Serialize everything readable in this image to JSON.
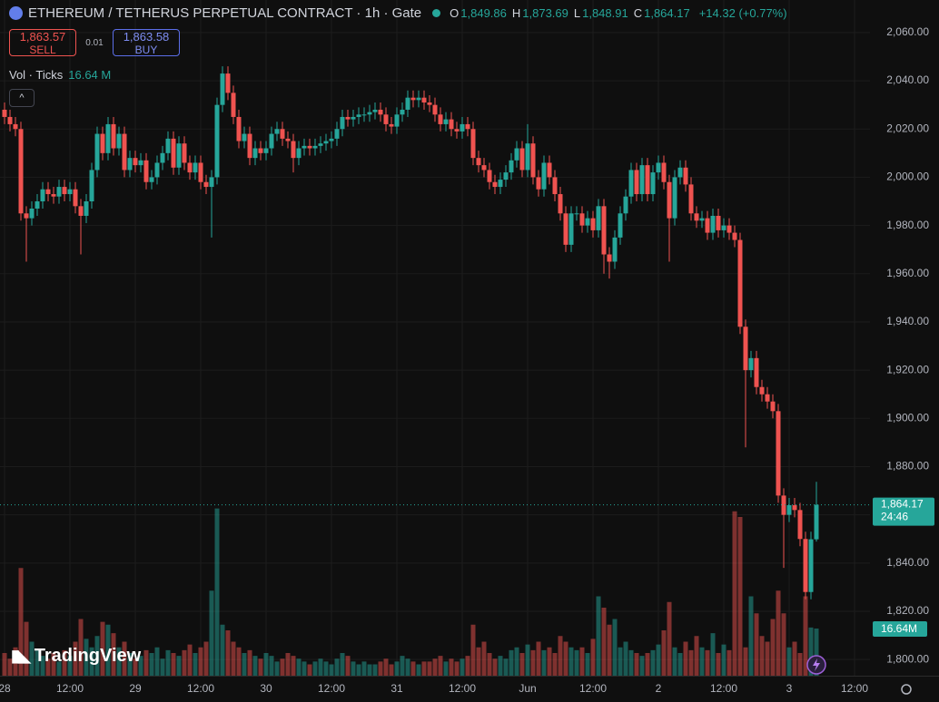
{
  "header": {
    "symbol": "ETHEREUM / TETHERUS PERPETUAL CONTRACT · 1h · Gate",
    "ohlc": [
      {
        "key": "O",
        "value": "1,849.86"
      },
      {
        "key": "H",
        "value": "1,873.69"
      },
      {
        "key": "L",
        "value": "1,848.91"
      },
      {
        "key": "C",
        "value": "1,864.17"
      }
    ],
    "change": "+14.32 (+0.77%)"
  },
  "trade": {
    "sell_price": "1,863.57",
    "sell": "SELL",
    "spread": "0.01",
    "buy_price": "1,863.58",
    "buy": "BUY"
  },
  "volume_legend": {
    "label": "Vol · Ticks",
    "value": "16.64 M"
  },
  "branding": "TradingView",
  "chart_data": {
    "type": "candlestick",
    "open": [
      2028,
      2025,
      2022,
      2020,
      1985,
      1983,
      1987,
      1990,
      1995,
      1993,
      1992,
      1996,
      1993,
      1995,
      1988,
      1984,
      1990,
      2003,
      2018,
      2010,
      2022,
      2012,
      2018,
      2003,
      2008,
      2005,
      2007,
      1998,
      2000,
      2006,
      2010,
      2016,
      2004,
      2014,
      2006,
      2002,
      2006,
      1998,
      1996,
      2000,
      2030,
      2043,
      2035,
      2025,
      2015,
      2018,
      2008,
      2012,
      2010,
      2012,
      2018,
      2020,
      2016,
      2015,
      2008,
      2012,
      2013,
      2012,
      2013,
      2014,
      2015,
      2016,
      2020,
      2025,
      2024,
      2025,
      2026,
      2026,
      2027,
      2028,
      2026,
      2022,
      2021,
      2026,
      2028,
      2033,
      2032,
      2033,
      2031,
      2030,
      2026,
      2022,
      2024,
      2020,
      2019,
      2022,
      2020,
      2008,
      2005,
      2003,
      1998,
      1996,
      1999,
      2002,
      2007,
      2012,
      2003,
      2014,
      2000,
      1995,
      2006,
      2000,
      1993,
      1985,
      1972,
      1985,
      1985,
      1980,
      1983,
      1978,
      1988,
      1968,
      1965,
      1975,
      1985,
      1992,
      2003,
      1993,
      2005,
      1993,
      2002,
      2006,
      1998,
      1983,
      2000,
      2004,
      1997,
      1985,
      1982,
      1983,
      1977,
      1984,
      1978,
      1980,
      1977,
      1974,
      1938,
      1920,
      1925,
      1913,
      1910,
      1907,
      1903,
      1868,
      1860,
      1864,
      1862,
      1850,
      1828,
      1849.86
    ],
    "high": [
      2031,
      2028,
      2025,
      2023,
      1988,
      1990,
      1993,
      1998,
      1998,
      1996,
      1999,
      1999,
      1998,
      1998,
      1991,
      1993,
      2006,
      2021,
      2021,
      2025,
      2025,
      2021,
      2021,
      2011,
      2011,
      2010,
      2010,
      2003,
      2009,
      2013,
      2019,
      2019,
      2017,
      2017,
      2009,
      2009,
      2009,
      2001,
      2003,
      2033,
      2046,
      2046,
      2038,
      2028,
      2021,
      2021,
      2015,
      2015,
      2015,
      2021,
      2023,
      2023,
      2019,
      2018,
      2015,
      2016,
      2016,
      2016,
      2017,
      2018,
      2019,
      2023,
      2028,
      2028,
      2028,
      2029,
      2029,
      2030,
      2031,
      2031,
      2029,
      2025,
      2029,
      2031,
      2036,
      2036,
      2036,
      2036,
      2034,
      2033,
      2029,
      2027,
      2027,
      2023,
      2025,
      2025,
      2023,
      2011,
      2008,
      2006,
      2001,
      2002,
      2005,
      2010,
      2015,
      2015,
      2022,
      2017,
      2003,
      2009,
      2009,
      2003,
      1996,
      1988,
      1988,
      1988,
      1988,
      1986,
      1986,
      1991,
      1991,
      1971,
      1978,
      1988,
      1995,
      2006,
      2006,
      2008,
      2008,
      2005,
      2009,
      2009,
      2001,
      2003,
      2007,
      2007,
      2000,
      1988,
      1986,
      1986,
      1987,
      1987,
      1983,
      1983,
      1980,
      1977,
      1941,
      1928,
      1928,
      1916,
      1913,
      1910,
      1906,
      1871,
      1867,
      1867,
      1865,
      1853,
      1853,
      1873.69
    ],
    "low": [
      2022,
      2019,
      2017,
      1982,
      1965,
      1980,
      1984,
      1987,
      1990,
      1989,
      1989,
      1990,
      1990,
      1985,
      1968,
      1981,
      1987,
      2000,
      2007,
      2007,
      2009,
      2009,
      2000,
      2000,
      2002,
      2002,
      1995,
      1995,
      1997,
      2003,
      2007,
      2001,
      2001,
      2003,
      1999,
      1999,
      1995,
      1993,
      1975,
      1997,
      2027,
      2032,
      2022,
      2012,
      2012,
      2005,
      2005,
      2007,
      2007,
      2009,
      2015,
      2013,
      2012,
      2002,
      2005,
      2009,
      2009,
      2009,
      2010,
      2011,
      2012,
      2013,
      2017,
      2021,
      2021,
      2022,
      2023,
      2023,
      2024,
      2023,
      2019,
      2018,
      2018,
      2023,
      2025,
      2029,
      2029,
      2028,
      2027,
      2023,
      2019,
      2019,
      2017,
      2016,
      2016,
      2017,
      2005,
      2002,
      2000,
      1995,
      1993,
      1993,
      1996,
      1999,
      2004,
      2000,
      2000,
      1997,
      1992,
      1992,
      1997,
      1990,
      1982,
      1969,
      1969,
      1982,
      1977,
      1977,
      1975,
      1975,
      1960,
      1958,
      1962,
      1972,
      1982,
      1989,
      1990,
      1990,
      1990,
      1990,
      1999,
      1995,
      1965,
      1980,
      1997,
      1994,
      1982,
      1979,
      1979,
      1974,
      1974,
      1975,
      1975,
      1974,
      1971,
      1935,
      1888,
      1917,
      1910,
      1907,
      1904,
      1900,
      1865,
      1838,
      1857,
      1859,
      1847,
      1825,
      1825,
      1848.91
    ],
    "close": [
      2025,
      2022,
      2020,
      1985,
      1983,
      1987,
      1990,
      1995,
      1993,
      1992,
      1996,
      1993,
      1995,
      1988,
      1984,
      1990,
      2003,
      2018,
      2010,
      2022,
      2012,
      2018,
      2003,
      2008,
      2005,
      2007,
      1998,
      2000,
      2006,
      2010,
      2016,
      2004,
      2014,
      2006,
      2002,
      2006,
      1998,
      1996,
      2000,
      2030,
      2043,
      2035,
      2025,
      2015,
      2018,
      2008,
      2012,
      2010,
      2012,
      2018,
      2020,
      2016,
      2015,
      2008,
      2012,
      2013,
      2012,
      2013,
      2014,
      2015,
      2016,
      2020,
      2025,
      2024,
      2025,
      2026,
      2026,
      2027,
      2028,
      2026,
      2022,
      2021,
      2026,
      2028,
      2033,
      2032,
      2033,
      2031,
      2030,
      2026,
      2022,
      2024,
      2020,
      2019,
      2022,
      2020,
      2008,
      2005,
      2003,
      1998,
      1996,
      1999,
      2002,
      2007,
      2012,
      2003,
      2014,
      2000,
      1995,
      2006,
      2000,
      1993,
      1985,
      1972,
      1985,
      1985,
      1980,
      1983,
      1978,
      1988,
      1968,
      1965,
      1975,
      1985,
      1992,
      2003,
      1993,
      2005,
      1993,
      2002,
      2006,
      1998,
      1983,
      2000,
      2004,
      1997,
      1985,
      1982,
      1983,
      1977,
      1984,
      1978,
      1980,
      1977,
      1974,
      1938,
      1920,
      1925,
      1913,
      1910,
      1907,
      1903,
      1868,
      1860,
      1864,
      1862,
      1850,
      1828,
      1849.86,
      1864.17
    ],
    "volume": [
      8,
      6,
      10,
      38,
      19,
      12,
      9,
      7,
      6,
      8,
      5,
      9,
      7,
      12,
      20,
      13,
      10,
      14,
      19,
      18,
      15,
      10,
      12,
      8,
      6,
      7,
      9,
      8,
      10,
      6,
      9,
      8,
      7,
      9,
      11,
      8,
      10,
      12,
      30,
      59,
      18,
      16,
      12,
      10,
      8,
      9,
      7,
      6,
      8,
      7,
      5,
      6,
      8,
      7,
      6,
      5,
      4,
      5,
      6,
      5,
      4,
      6,
      8,
      7,
      5,
      4,
      5,
      4,
      4,
      5,
      6,
      4,
      5,
      7,
      6,
      5,
      4,
      5,
      5,
      6,
      7,
      5,
      6,
      5,
      6,
      7,
      18,
      10,
      12,
      8,
      6,
      7,
      6,
      9,
      10,
      8,
      11,
      9,
      12,
      9,
      10,
      8,
      14,
      12,
      10,
      9,
      10,
      8,
      13,
      28,
      24,
      18,
      20,
      10,
      12,
      9,
      8,
      7,
      8,
      9,
      11,
      16,
      26,
      10,
      8,
      12,
      9,
      14,
      10,
      9,
      15,
      8,
      11,
      9,
      58,
      56,
      10,
      28,
      22,
      14,
      12,
      20,
      30,
      22,
      10,
      12,
      8,
      28,
      17,
      16.64
    ],
    "up_color": "#26a69a",
    "down_color": "#ef5350",
    "ylim": [
      1793.3,
      2073.5
    ],
    "yticks": [
      {
        "value": 1800,
        "label": "1,800.00"
      },
      {
        "value": 1820,
        "label": "1,820.00"
      },
      {
        "value": 1840,
        "label": "1,840.00"
      },
      {
        "value": 1860,
        "label": "1,860.00"
      },
      {
        "value": 1880,
        "label": "1,880.00"
      },
      {
        "value": 1900,
        "label": "1,900.00"
      },
      {
        "value": 1920,
        "label": "1,920.00"
      },
      {
        "value": 1940,
        "label": "1,940.00"
      },
      {
        "value": 1960,
        "label": "1,960.00"
      },
      {
        "value": 1980,
        "label": "1,980.00"
      },
      {
        "value": 2000,
        "label": "2,000.00"
      },
      {
        "value": 2020,
        "label": "2,020.00"
      },
      {
        "value": 2040,
        "label": "2,040.00"
      },
      {
        "value": 2060,
        "label": "2,060.00"
      }
    ],
    "xticks": [
      {
        "value": 0,
        "label": "28"
      },
      {
        "value": 12,
        "label": "12:00"
      },
      {
        "value": 24,
        "label": "29"
      },
      {
        "value": 36,
        "label": "12:00"
      },
      {
        "value": 48,
        "label": "30"
      },
      {
        "value": 60,
        "label": "12:00"
      },
      {
        "value": 72,
        "label": "31"
      },
      {
        "value": 84,
        "label": "12:00"
      },
      {
        "value": 96,
        "label": "Jun"
      },
      {
        "value": 108,
        "label": "12:00"
      },
      {
        "value": 120,
        "label": "2"
      },
      {
        "value": 132,
        "label": "12:00"
      },
      {
        "value": 144,
        "label": "3"
      },
      {
        "value": 156,
        "label": "12:00"
      }
    ],
    "grid": true,
    "last_price_label": "1,864.17",
    "countdown": "24:46",
    "last_volume_label": "16.64M"
  }
}
